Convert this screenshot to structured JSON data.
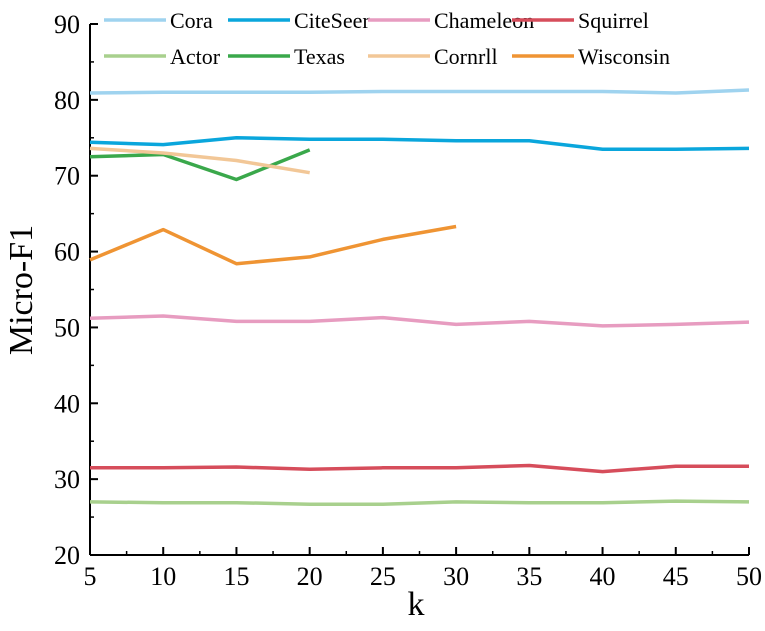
{
  "chart_data": {
    "type": "line",
    "title": "",
    "xlabel": "k",
    "ylabel": "Micro-F1",
    "xlim": [
      5,
      50
    ],
    "ylim": [
      20,
      90
    ],
    "xticks": [
      5,
      10,
      15,
      20,
      25,
      30,
      35,
      40,
      45,
      50
    ],
    "yticks": [
      20,
      30,
      40,
      50,
      60,
      70,
      80,
      90
    ],
    "grid": false,
    "legend_position": "top",
    "series": [
      {
        "name": "Cora",
        "color": "#9fd3ef",
        "x": [
          5,
          10,
          15,
          20,
          25,
          30,
          35,
          40,
          45,
          50
        ],
        "y": [
          80.9,
          81.0,
          81.0,
          81.0,
          81.1,
          81.1,
          81.1,
          81.1,
          80.9,
          81.3
        ]
      },
      {
        "name": "CiteSeer",
        "color": "#0aa6dc",
        "x": [
          5,
          10,
          15,
          20,
          25,
          30,
          35,
          40,
          45,
          50
        ],
        "y": [
          74.4,
          74.1,
          75.0,
          74.8,
          74.8,
          74.6,
          74.6,
          73.5,
          73.5,
          73.6
        ]
      },
      {
        "name": "Chameleon",
        "color": "#e79cc0",
        "x": [
          5,
          10,
          15,
          20,
          25,
          30,
          35,
          40,
          45,
          50
        ],
        "y": [
          51.2,
          51.5,
          50.8,
          50.8,
          51.3,
          50.4,
          50.8,
          50.2,
          50.4,
          50.7
        ]
      },
      {
        "name": "Squirrel",
        "color": "#d64d5b",
        "x": [
          5,
          10,
          15,
          20,
          25,
          30,
          35,
          40,
          45,
          50
        ],
        "y": [
          31.5,
          31.5,
          31.6,
          31.3,
          31.5,
          31.5,
          31.8,
          31.0,
          31.7,
          31.7
        ]
      },
      {
        "name": "Actor",
        "color": "#a8d08d",
        "x": [
          5,
          10,
          15,
          20,
          25,
          30,
          35,
          40,
          45,
          50
        ],
        "y": [
          27.0,
          26.9,
          26.9,
          26.7,
          26.7,
          27.0,
          26.9,
          26.9,
          27.1,
          27.0
        ]
      },
      {
        "name": "Texas",
        "color": "#3aa84b",
        "x": [
          5,
          10,
          15,
          20
        ],
        "y": [
          72.5,
          72.8,
          69.5,
          73.4
        ]
      },
      {
        "name": "Cornrll",
        "color": "#f2c797",
        "x": [
          5,
          10,
          15,
          20
        ],
        "y": [
          73.6,
          73.0,
          72.0,
          70.4
        ]
      },
      {
        "name": "Wisconsin",
        "color": "#ef9433",
        "x": [
          5,
          10,
          15,
          20,
          25,
          30
        ],
        "y": [
          58.9,
          62.9,
          58.4,
          59.3,
          61.6,
          63.3
        ]
      }
    ]
  }
}
